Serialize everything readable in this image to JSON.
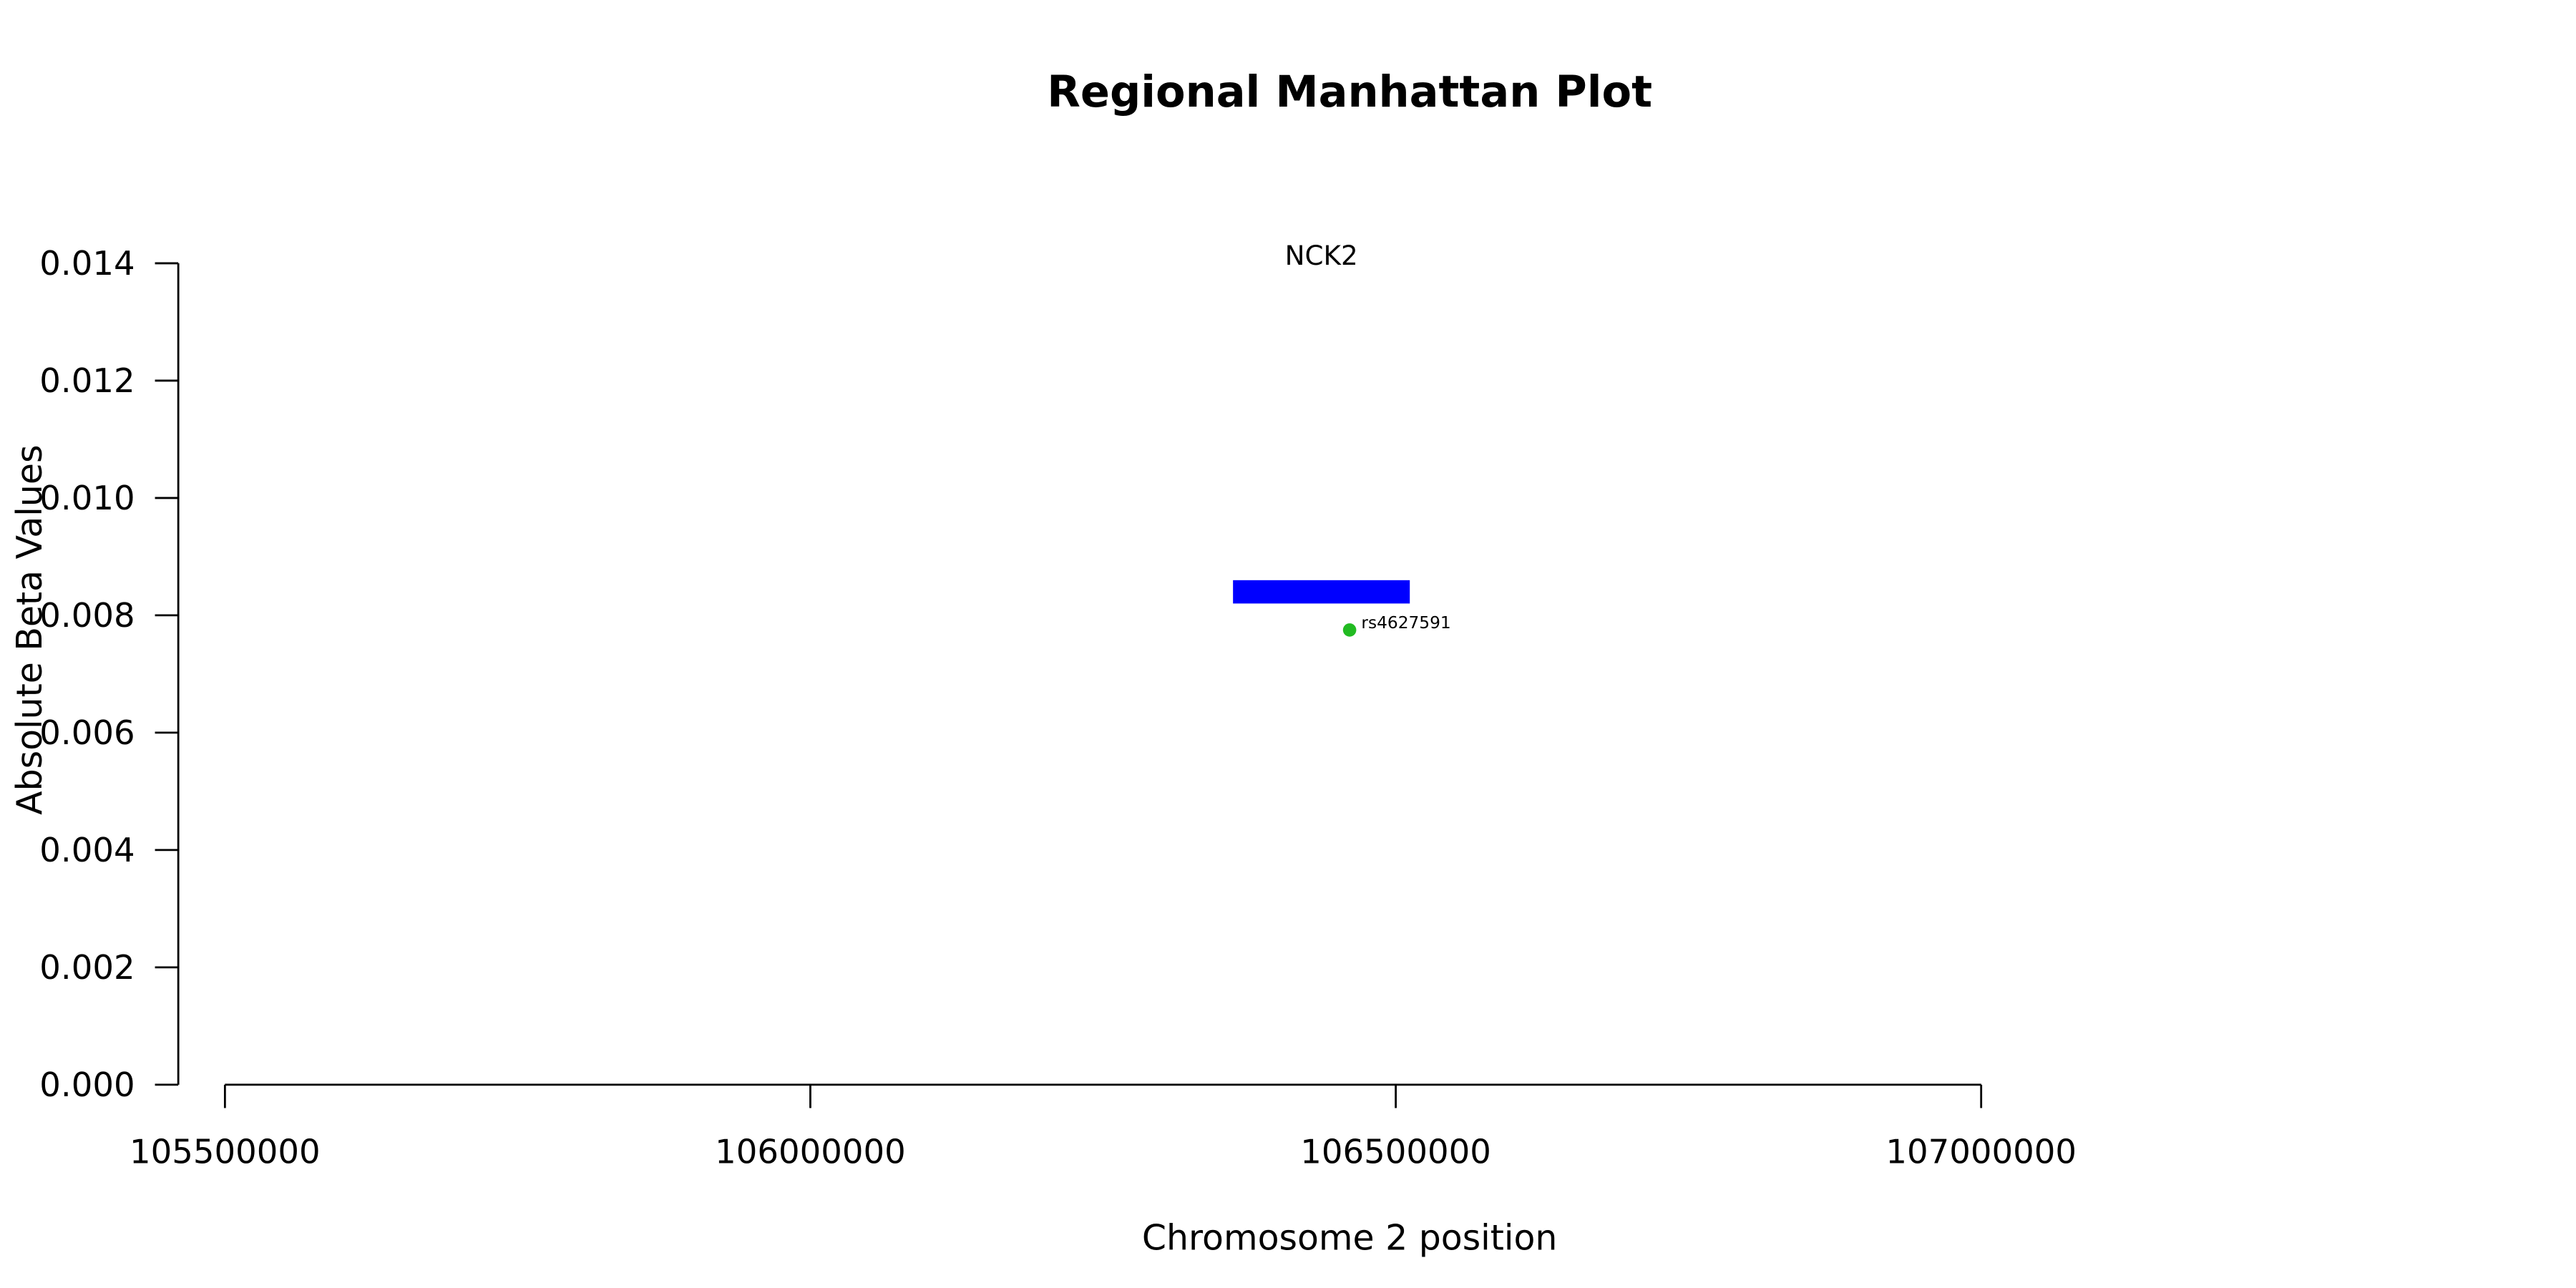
{
  "chart_data": {
    "type": "scatter",
    "title": "Regional Manhattan Plot",
    "xlabel": "Chromosome 2 position",
    "ylabel": "Absolute Beta Values",
    "xlim": [
      105500000,
      107000000
    ],
    "xticks": [
      105500000,
      106000000,
      106500000,
      107000000
    ],
    "ylim": [
      0,
      0.014
    ],
    "yticks": [
      {
        "value": 0,
        "label": "0.000"
      },
      {
        "value": 0.002,
        "label": "0.002"
      },
      {
        "value": 0.004,
        "label": "0.004"
      },
      {
        "value": 0.006,
        "label": "0.006"
      },
      {
        "value": 0.008,
        "label": "0.008"
      },
      {
        "value": 0.01,
        "label": "0.010"
      },
      {
        "value": 0.012,
        "label": "0.012"
      },
      {
        "value": 0.014,
        "label": "0.014"
      }
    ],
    "points": [
      {
        "x": 106460600,
        "y": 0.00775,
        "label": "rs4627591",
        "color": "#22bb22"
      }
    ],
    "genes": [
      {
        "name": "NCK2",
        "start": 106361000,
        "end": 106512000,
        "y": 0.0084,
        "color": "#0000ff"
      }
    ]
  }
}
